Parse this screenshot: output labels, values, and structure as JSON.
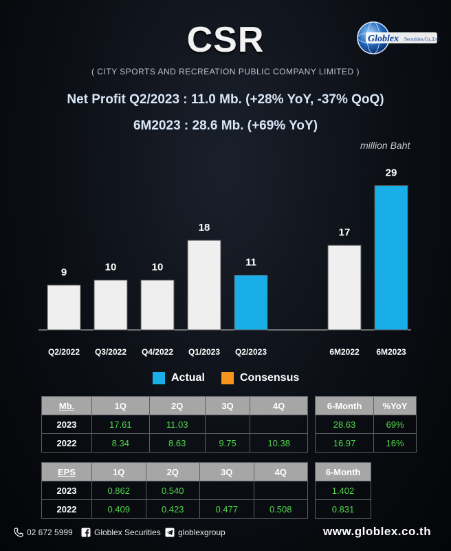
{
  "header": {
    "title": "CSR",
    "subtitle": "( CITY SPORTS AND RECREATION PUBLIC COMPANY LIMITED )",
    "logo_text": "Globlex",
    "logo_subtext": "Securities,Co.,Ltd.",
    "headline_1": "Net Profit  Q2/2023 : 11.0 Mb. (+28% YoY, -37% QoQ)",
    "headline_2": "6M2023 : 28.6 Mb. (+69% YoY)",
    "unit": "million Baht"
  },
  "chart_data": {
    "type": "bar",
    "title": "",
    "xlabel": "",
    "ylabel": "million Baht",
    "ylim": [
      0,
      31
    ],
    "grid": false,
    "legend": "bottom",
    "categories": [
      "Q2/2022",
      "Q3/2022",
      "Q4/2022",
      "Q1/2023",
      "Q2/2023",
      "",
      "6M2022",
      "6M2023"
    ],
    "values": [
      9,
      10,
      10,
      18,
      11,
      null,
      17,
      29
    ],
    "data_labels": [
      "9",
      "10",
      "10",
      "18",
      "11",
      "",
      "17",
      "29"
    ],
    "highlight": [
      false,
      false,
      false,
      false,
      true,
      false,
      false,
      true
    ],
    "colors": {
      "actual": "#19aee8",
      "base": "#efefef",
      "consensus": "#f7941d"
    }
  },
  "legend": {
    "actual": "Actual",
    "consensus": "Consensus"
  },
  "mb_table": {
    "corner": "Mb.",
    "columns": [
      "1Q",
      "2Q",
      "3Q",
      "4Q"
    ],
    "rows": [
      {
        "year": "2023",
        "values": [
          "17.61",
          "11.03",
          "",
          ""
        ]
      },
      {
        "year": "2022",
        "values": [
          "8.34",
          "8.63",
          "9.75",
          "10.38"
        ]
      }
    ]
  },
  "mb_half": {
    "columns": [
      "6-Month",
      "%YoY"
    ],
    "rows": [
      {
        "values": [
          "28.63",
          "69%"
        ]
      },
      {
        "values": [
          "16.97",
          "16%"
        ]
      }
    ]
  },
  "eps_table": {
    "corner": "EPS",
    "columns": [
      "1Q",
      "2Q",
      "3Q",
      "4Q"
    ],
    "rows": [
      {
        "year": "2023",
        "values": [
          "0.862",
          "0.540",
          "",
          ""
        ]
      },
      {
        "year": "2022",
        "values": [
          "0.409",
          "0.423",
          "0.477",
          "0.508"
        ]
      }
    ]
  },
  "eps_half": {
    "columns": [
      "6-Month"
    ],
    "rows": [
      {
        "values": [
          "1.402"
        ]
      },
      {
        "values": [
          "0.831"
        ]
      }
    ]
  },
  "footer": {
    "phone": "02 672 5999",
    "facebook": "Globlex Securities",
    "telegram": "globlexgroup",
    "website": "www.globlex.co.th"
  }
}
